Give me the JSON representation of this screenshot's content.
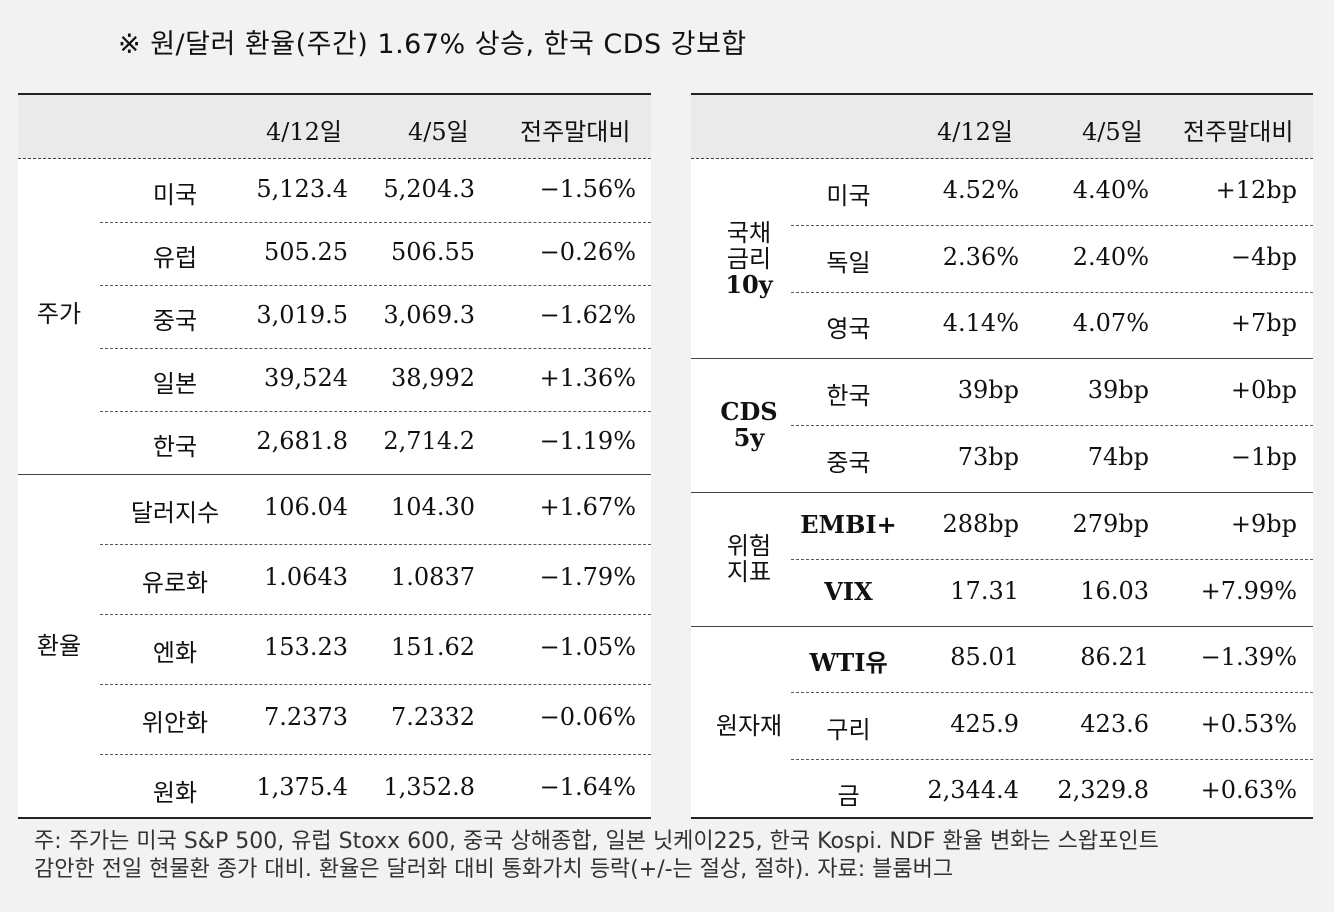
{
  "title": "※ 원/달러 환율(주간) 1.67% 상승, 한국 CDS 강보합",
  "left_table": {
    "headers": [
      "4/12일",
      "4/5일",
      "전주말대비"
    ],
    "groups": [
      {
        "label": "주가",
        "rows": [
          {
            "name": "미국",
            "v1": "5,123.4",
            "v2": "5,204.3",
            "chg": "−1.56%"
          },
          {
            "name": "유럽",
            "v1": "505.25",
            "v2": "506.55",
            "chg": "−0.26%"
          },
          {
            "name": "중국",
            "v1": "3,019.5",
            "v2": "3,069.3",
            "chg": "−1.62%"
          },
          {
            "name": "일본",
            "v1": "39,524",
            "v2": "38,992",
            "chg": "+1.36%"
          },
          {
            "name": "한국",
            "v1": "2,681.8",
            "v2": "2,714.2",
            "chg": "−1.19%"
          }
        ]
      },
      {
        "label": "환율",
        "rows": [
          {
            "name": "달러지수",
            "v1": "106.04",
            "v2": "104.30",
            "chg": "+1.67%"
          },
          {
            "name": "유로화",
            "v1": "1.0643",
            "v2": "1.0837",
            "chg": "−1.79%"
          },
          {
            "name": "엔화",
            "v1": "153.23",
            "v2": "151.62",
            "chg": "−1.05%"
          },
          {
            "name": "위안화",
            "v1": "7.2373",
            "v2": "7.2332",
            "chg": "−0.06%"
          },
          {
            "name": "원화",
            "v1": "1,375.4",
            "v2": "1,352.8",
            "chg": "−1.64%"
          }
        ]
      }
    ]
  },
  "right_table": {
    "headers": [
      "4/12일",
      "4/5일",
      "전주말대비"
    ],
    "groups": [
      {
        "label": [
          "국채",
          "금리",
          "10y"
        ],
        "rows": [
          {
            "name": "미국",
            "v1": "4.52%",
            "v2": "4.40%",
            "chg": "+12bp"
          },
          {
            "name": "독일",
            "v1": "2.36%",
            "v2": "2.40%",
            "chg": "−4bp"
          },
          {
            "name": "영국",
            "v1": "4.14%",
            "v2": "4.07%",
            "chg": "+7bp"
          }
        ]
      },
      {
        "label": [
          "CDS",
          "5y"
        ],
        "rows": [
          {
            "name": "한국",
            "v1": "39bp",
            "v2": "39bp",
            "chg": "+0bp"
          },
          {
            "name": "중국",
            "v1": "73bp",
            "v2": "74bp",
            "chg": "−1bp"
          }
        ]
      },
      {
        "label": [
          "위험",
          "지표"
        ],
        "rows": [
          {
            "name": "EMBI+",
            "v1": "288bp",
            "v2": "279bp",
            "chg": "+9bp"
          },
          {
            "name": "VIX",
            "v1": "17.31",
            "v2": "16.03",
            "chg": "+7.99%"
          }
        ]
      },
      {
        "label": [
          "원자재"
        ],
        "rows": [
          {
            "name": "WTI유",
            "v1": "85.01",
            "v2": "86.21",
            "chg": "−1.39%"
          },
          {
            "name": "구리",
            "v1": "425.9",
            "v2": "423.6",
            "chg": "+0.53%"
          },
          {
            "name": "금",
            "v1": "2,344.4",
            "v2": "2,329.8",
            "chg": "+0.63%"
          }
        ]
      }
    ]
  },
  "note": {
    "line1": "주: 주가는 미국 S&P 500, 유럽 Stoxx 600, 중국 상해종합, 일본 닛케이225, 한국 Kospi. NDF 환율 변화는 스왑포인트",
    "line2": "감안한 전일 현물환 종가 대비. 환율은 달러화 대비 통화가치 등락(+/-는 절상, 절하). 자료: 블룸버그"
  }
}
